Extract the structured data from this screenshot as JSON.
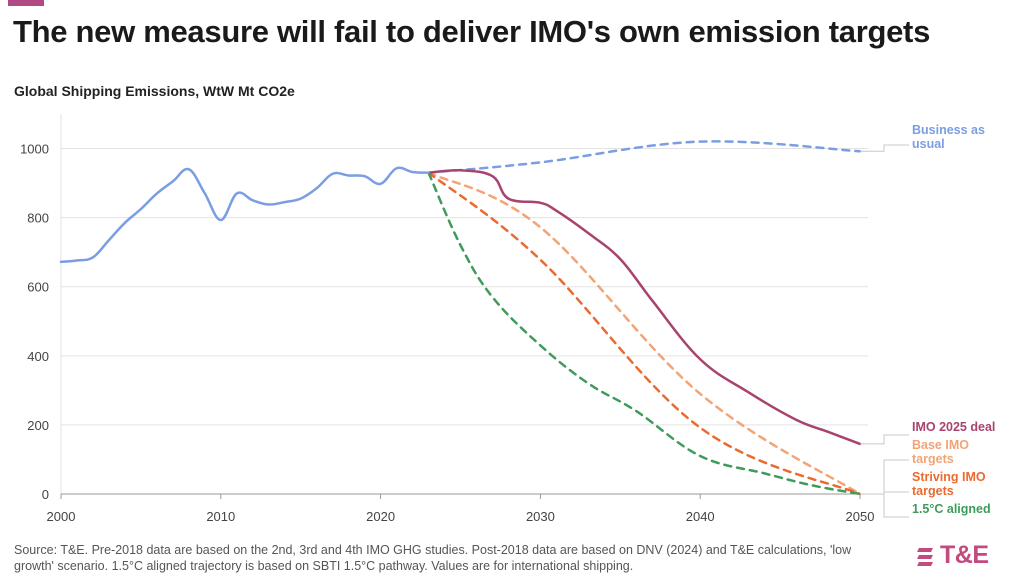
{
  "title": "The new measure will fail to deliver IMO's own emission targets",
  "subtitle": "Global Shipping Emissions, WtW Mt CO2e",
  "source": "Source: T&E. Pre-2018 data are based on the 2nd, 3rd and 4th IMO GHG studies. Post-2018 data are based on DNV (2024) and T&E calculations, 'low growth' scenario. 1.5°C aligned trajectory is based on SBTI 1.5°C pathway. Values are for international shipping.",
  "logo_text": "T&E",
  "colors": {
    "accent": "#b14a83",
    "logo": "#c4497f"
  },
  "chart_data": {
    "type": "line",
    "title": "The new measure will fail to deliver IMO's own emission targets",
    "ylabel": "Global Shipping Emissions, WtW Mt CO2e",
    "xlim": [
      2000,
      2050
    ],
    "ylim": [
      0,
      1100
    ],
    "x_ticks": [
      2000,
      2010,
      2020,
      2030,
      2040,
      2050
    ],
    "y_ticks": [
      0,
      200,
      400,
      600,
      800,
      1000
    ],
    "grid": "horizontal",
    "series": [
      {
        "id": "historical",
        "name": "",
        "color": "#7b9de2",
        "dashed": false,
        "points": [
          [
            2000,
            672
          ],
          [
            2001,
            676
          ],
          [
            2002,
            685
          ],
          [
            2003,
            735
          ],
          [
            2004,
            785
          ],
          [
            2005,
            825
          ],
          [
            2006,
            870
          ],
          [
            2007,
            905
          ],
          [
            2008,
            940
          ],
          [
            2009,
            870
          ],
          [
            2010,
            793
          ],
          [
            2011,
            870
          ],
          [
            2012,
            850
          ],
          [
            2013,
            838
          ],
          [
            2014,
            845
          ],
          [
            2015,
            855
          ],
          [
            2016,
            885
          ],
          [
            2017,
            927
          ],
          [
            2018,
            922
          ],
          [
            2019,
            920
          ],
          [
            2020,
            898
          ],
          [
            2021,
            943
          ],
          [
            2022,
            932
          ],
          [
            2023,
            930
          ]
        ]
      },
      {
        "id": "business_as_usual",
        "name": "Business as usual",
        "color": "#7b9de2",
        "dashed": true,
        "points": [
          [
            2023,
            930
          ],
          [
            2030,
            960
          ],
          [
            2040,
            1020
          ],
          [
            2050,
            992
          ]
        ]
      },
      {
        "id": "imo_2025_deal",
        "name": "IMO 2025 deal",
        "color": "#a8436f",
        "dashed": false,
        "points": [
          [
            2023,
            930
          ],
          [
            2025,
            937
          ],
          [
            2027,
            920
          ],
          [
            2028,
            855
          ],
          [
            2030,
            843
          ],
          [
            2031,
            820
          ],
          [
            2033,
            755
          ],
          [
            2035,
            680
          ],
          [
            2037,
            560
          ],
          [
            2040,
            390
          ],
          [
            2043,
            295
          ],
          [
            2046,
            215
          ],
          [
            2048,
            180
          ],
          [
            2050,
            145
          ]
        ]
      },
      {
        "id": "base_imo_targets",
        "name": "Base IMO targets",
        "color": "#f2a476",
        "dashed": true,
        "points": [
          [
            2023,
            930
          ],
          [
            2030,
            772
          ],
          [
            2040,
            290
          ],
          [
            2050,
            0
          ]
        ]
      },
      {
        "id": "striving_imo_targets",
        "name": "Striving IMO targets",
        "color": "#ea6a30",
        "dashed": true,
        "points": [
          [
            2023,
            930
          ],
          [
            2030,
            678
          ],
          [
            2040,
            192
          ],
          [
            2050,
            0
          ]
        ]
      },
      {
        "id": "aligned_1_5c",
        "name": "1.5°C aligned",
        "color": "#3f9b5c",
        "dashed": true,
        "points": [
          [
            2023,
            930
          ],
          [
            2025,
            720
          ],
          [
            2027,
            570
          ],
          [
            2030,
            430
          ],
          [
            2033,
            320
          ],
          [
            2036,
            240
          ],
          [
            2040,
            110
          ],
          [
            2044,
            60
          ],
          [
            2047,
            25
          ],
          [
            2050,
            0
          ]
        ]
      }
    ],
    "labels": [
      {
        "series": "business_as_usual",
        "lines": [
          "Business as",
          "usual"
        ],
        "color": "#7b9de2"
      },
      {
        "series": "imo_2025_deal",
        "lines": [
          "IMO 2025 deal"
        ],
        "color": "#a8436f"
      },
      {
        "series": "base_imo_targets",
        "lines": [
          "Base IMO",
          "targets"
        ],
        "color": "#f2a476"
      },
      {
        "series": "striving_imo_targets",
        "lines": [
          "Striving IMO",
          "targets"
        ],
        "color": "#ea6a30"
      },
      {
        "series": "aligned_1_5c",
        "lines": [
          "1.5°C aligned"
        ],
        "color": "#3f9b5c"
      }
    ]
  }
}
